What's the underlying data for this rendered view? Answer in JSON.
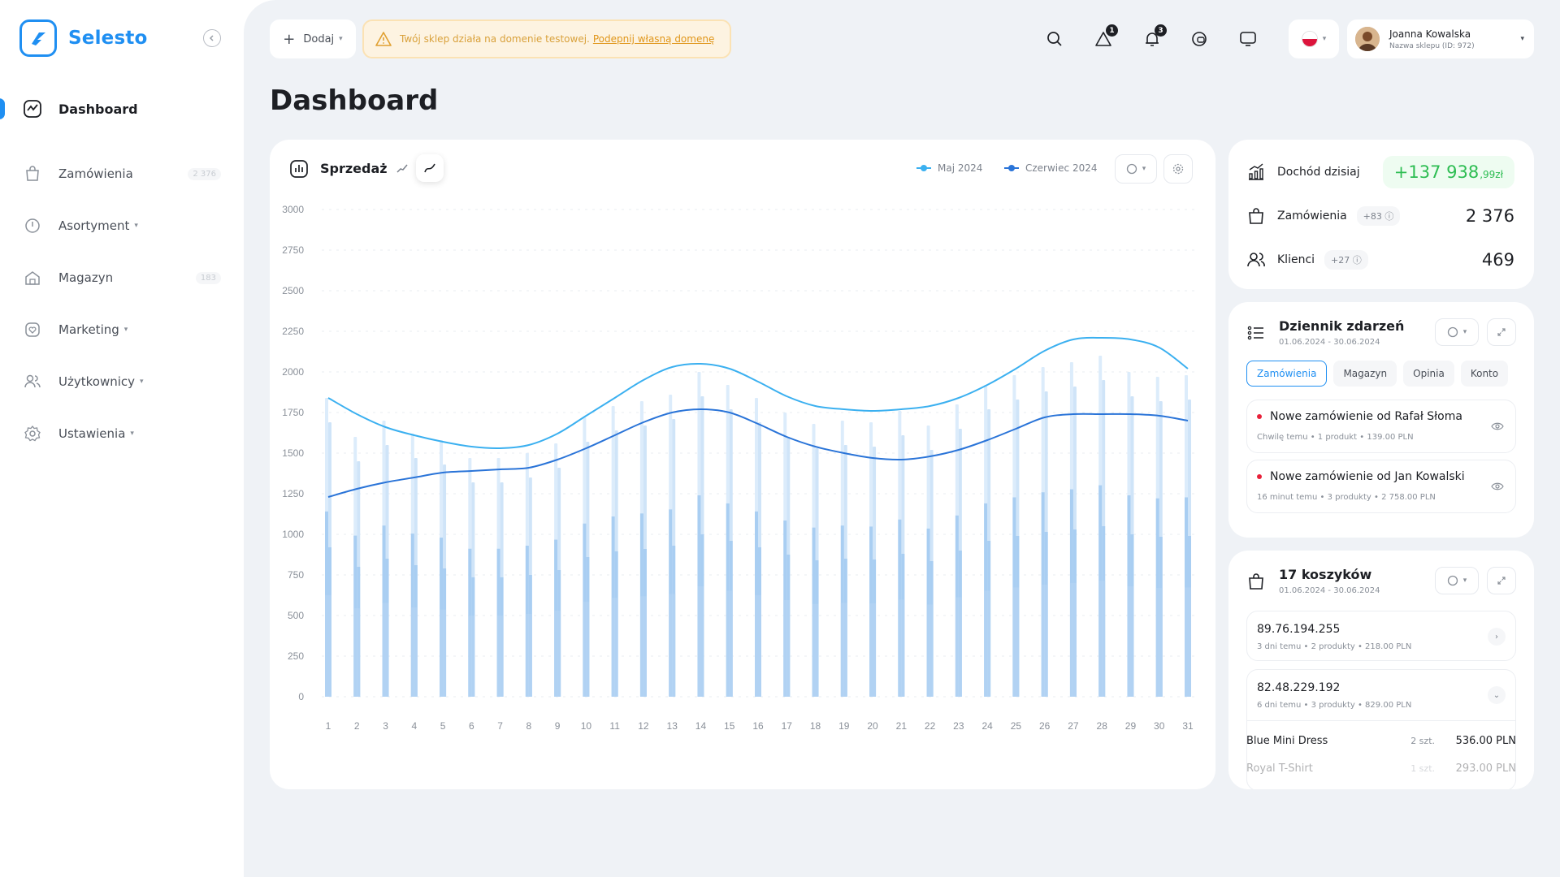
{
  "brand": {
    "name": "Selesto"
  },
  "sidebar": {
    "items": [
      {
        "label": "Dashboard"
      },
      {
        "label": "Zamówienia",
        "badge": "2 376"
      },
      {
        "label": "Asortyment"
      },
      {
        "label": "Magazyn",
        "badge": "183"
      },
      {
        "label": "Marketing"
      },
      {
        "label": "Użytkownicy"
      },
      {
        "label": "Ustawienia"
      }
    ]
  },
  "topbar": {
    "add_label": "Dodaj",
    "warning_text": "Twój sklep działa na domenie testowej.",
    "warning_link": "Podepnij własną domenę",
    "notifications_count": "1",
    "messages_count": "3",
    "user": {
      "name": "Joanna Kowalska",
      "sub": "Nazwa sklepu (ID: 972)"
    }
  },
  "page": {
    "title": "Dashboard"
  },
  "sales_card": {
    "title": "Sprzedaż",
    "legend": [
      "Maj 2024",
      "Czerwiec 2024"
    ]
  },
  "chart_data": {
    "type": "bar",
    "x": [
      1,
      2,
      3,
      4,
      5,
      6,
      7,
      8,
      9,
      10,
      11,
      12,
      13,
      14,
      15,
      16,
      17,
      18,
      19,
      20,
      21,
      22,
      23,
      24,
      25,
      26,
      27,
      28,
      29,
      30,
      31
    ],
    "ylim": [
      0,
      3000
    ],
    "yticks": [
      0,
      250,
      500,
      750,
      1000,
      1250,
      1500,
      1750,
      2000,
      2250,
      2500,
      2750,
      3000
    ],
    "series": [
      {
        "name": "Maj 2024",
        "kind": "line",
        "color": "#3bb0f0",
        "values": [
          1840,
          1740,
          1660,
          1610,
          1570,
          1540,
          1530,
          1550,
          1620,
          1730,
          1840,
          1950,
          2030,
          2050,
          2020,
          1940,
          1850,
          1790,
          1770,
          1760,
          1770,
          1790,
          1840,
          1920,
          2020,
          2130,
          2200,
          2210,
          2200,
          2150,
          2020
        ]
      },
      {
        "name": "Czerwiec 2024",
        "kind": "line",
        "color": "#2a74d8",
        "values": [
          1230,
          1280,
          1320,
          1350,
          1380,
          1390,
          1400,
          1410,
          1460,
          1530,
          1610,
          1690,
          1750,
          1770,
          1750,
          1680,
          1600,
          1540,
          1500,
          1470,
          1460,
          1480,
          1520,
          1580,
          1650,
          1720,
          1740,
          1740,
          1740,
          1730,
          1700
        ]
      },
      {
        "name": "bars",
        "kind": "bar",
        "color": "#a9cef2",
        "values": [
          1840,
          1600,
          1700,
          1620,
          1580,
          1470,
          1470,
          1500,
          1560,
          1720,
          1790,
          1820,
          1860,
          2000,
          1920,
          1840,
          1750,
          1680,
          1700,
          1690,
          1760,
          1670,
          1800,
          1920,
          1980,
          2030,
          2060,
          2100,
          2000,
          1970,
          1980
        ]
      }
    ]
  },
  "stats": {
    "income": {
      "label": "Dochód dzisiaj",
      "value": "+137 938",
      "decimals": ",99zł"
    },
    "orders": {
      "label": "Zamówienia",
      "delta": "+83",
      "value": "2 376"
    },
    "clients": {
      "label": "Klienci",
      "delta": "+27",
      "value": "469"
    }
  },
  "events_card": {
    "title": "Dziennik zdarzeń",
    "range": "01.06.2024 - 30.06.2024",
    "tabs": [
      "Zamówienia",
      "Magazyn",
      "Opinia",
      "Konto"
    ],
    "events": [
      {
        "title": "Nowe zamówienie od Rafał Słoma",
        "meta": "Chwilę temu  •  1 produkt  •  139.00 PLN"
      },
      {
        "title": "Nowe zamówienie od Jan Kowalski",
        "meta": "16 minut temu  •  3 produkty  •  2 758.00 PLN"
      }
    ]
  },
  "carts_card": {
    "title": "17 koszyków",
    "range": "01.06.2024 - 30.06.2024",
    "carts": [
      {
        "ip": "89.76.194.255",
        "meta": "3 dni temu  •  2 produkty  •  218.00 PLN"
      },
      {
        "ip": "82.48.229.192",
        "meta": "6 dni temu  •  3 produkty  •  829.00 PLN"
      }
    ],
    "products": [
      {
        "name": "Blue Mini Dress",
        "qty": "2 szt.",
        "price": "536.00 PLN"
      },
      {
        "name": "Royal T-Shirt",
        "qty": "1 szt.",
        "price": "293.00 PLN"
      }
    ]
  }
}
